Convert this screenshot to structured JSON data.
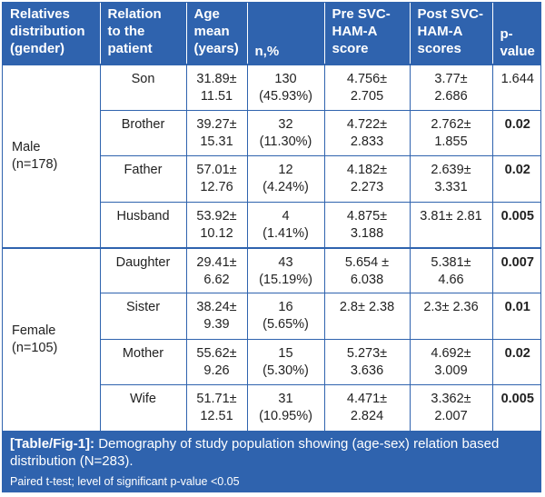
{
  "table": {
    "headers": [
      [
        "Relatives",
        "distribution",
        "(gender)"
      ],
      [
        "Relation",
        "to the",
        "patient"
      ],
      [
        "Age",
        "mean",
        "(years)"
      ],
      [
        "n,%"
      ],
      [
        "Pre SVC-",
        "HAM-A",
        "score"
      ],
      [
        "Post SVC-",
        "HAM-A",
        "scores"
      ],
      [
        "p-",
        "value"
      ]
    ],
    "groups": [
      {
        "label": "Male",
        "count": "(n=178)"
      },
      {
        "label": "Female",
        "count": "(n=105)"
      }
    ],
    "rows": [
      {
        "relation": "Son",
        "age": [
          "31.89±",
          "11.51"
        ],
        "n": [
          "130",
          "(45.93%)"
        ],
        "pre": [
          "4.756±",
          "2.705"
        ],
        "post": [
          "3.77±",
          "2.686"
        ],
        "p": "1.644",
        "p_bold": false
      },
      {
        "relation": "Brother",
        "age": [
          "39.27±",
          "15.31"
        ],
        "n": [
          "32",
          "(11.30%)"
        ],
        "pre": [
          "4.722±",
          "2.833"
        ],
        "post": [
          "2.762±",
          "1.855"
        ],
        "p": "0.02",
        "p_bold": true
      },
      {
        "relation": "Father",
        "age": [
          "57.01±",
          "12.76"
        ],
        "n": [
          "12",
          "(4.24%)"
        ],
        "pre": [
          "4.182±",
          "2.273"
        ],
        "post": [
          "2.639±",
          "3.331"
        ],
        "p": "0.02",
        "p_bold": true
      },
      {
        "relation": "Husband",
        "age": [
          "53.92±",
          "10.12"
        ],
        "n": [
          "4",
          "(1.41%)"
        ],
        "pre": [
          "4.875±",
          "3.188"
        ],
        "post": [
          "3.81± 2.81"
        ],
        "p": "0.005",
        "p_bold": true
      },
      {
        "relation": "Daughter",
        "age": [
          "29.41±",
          "6.62"
        ],
        "n": [
          "43",
          "(15.19%)"
        ],
        "pre": [
          "5.654 ±",
          "6.038"
        ],
        "post": [
          "5.381±",
          "4.66"
        ],
        "p": "0.007",
        "p_bold": true
      },
      {
        "relation": "Sister",
        "age": [
          "38.24±",
          "9.39"
        ],
        "n": [
          "16",
          "(5.65%)"
        ],
        "pre": [
          "2.8± 2.38"
        ],
        "post": [
          "2.3± 2.36"
        ],
        "p": "0.01",
        "p_bold": true
      },
      {
        "relation": "Mother",
        "age": [
          "55.62±",
          "9.26"
        ],
        "n": [
          "15",
          "(5.30%)"
        ],
        "pre": [
          "5.273±",
          "3.636"
        ],
        "post": [
          "4.692±",
          "3.009"
        ],
        "p": "0.02",
        "p_bold": true
      },
      {
        "relation": "Wife",
        "age": [
          "51.71±",
          "12.51"
        ],
        "n": [
          "31",
          "(10.95%)"
        ],
        "pre": [
          "4.471±",
          "2.824"
        ],
        "post": [
          "3.362±",
          "2.007"
        ],
        "p": "0.005",
        "p_bold": true
      }
    ]
  },
  "caption": {
    "label": "[Table/Fig-1]:",
    "text": " Demography of study population showing (age-sex) relation based distribution (N=283).",
    "note": "Paired t-test; level of significant p-value <0.05"
  },
  "colors": {
    "accent": "#2f63ae",
    "header_text": "#ffffff",
    "body_text": "#222222"
  }
}
